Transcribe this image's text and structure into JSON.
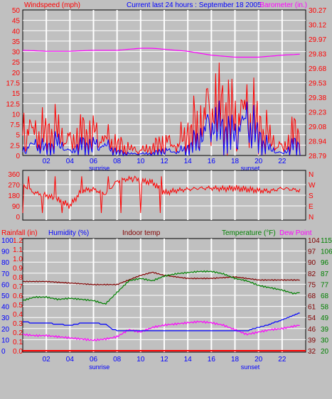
{
  "header": {
    "left_label": "Windspeed (mph)",
    "center_label": "Current last 24 hours : September 18 2005",
    "right_label": "Barometer (in.)"
  },
  "colors": {
    "background": "#c0c0c0",
    "plot": "#c0c0c0",
    "grid": "#ffffff",
    "wind": "#ff0000",
    "gust": "#ff0000",
    "wind_avg": "#0000ff",
    "barometer": "#ff00ff",
    "direction": "#ff0000",
    "rain": "#ff0000",
    "humidity": "#0000ff",
    "indoor": "#800000",
    "temperature": "#008000",
    "dewpoint": "#ff00ff",
    "right_axis": "#800000",
    "right_axis2": "#008000"
  },
  "chart_data": [
    {
      "type": "line",
      "title": "Windspeed (mph) / Barometer (in.)",
      "x_ticks": [
        "02",
        "04",
        "06",
        "08",
        "10",
        "12",
        "14",
        "16",
        "18",
        "20",
        "22"
      ],
      "x_extra_labels": [
        {
          "hour": 6.5,
          "label": "sunrise"
        },
        {
          "hour": 19.3,
          "label": "sunset"
        }
      ],
      "left_axis": {
        "label": "Windspeed (mph)",
        "ticks": [
          0,
          2.5,
          5,
          7.5,
          10,
          12.5,
          15,
          17.5,
          20,
          25,
          30,
          35,
          40,
          45,
          50
        ]
      },
      "right_axis": {
        "label": "Barometer (in.)",
        "ticks": [
          "28.79",
          "28.94",
          "29.08",
          "29.23",
          "29.38",
          "29.53",
          "29.68",
          "29.83",
          "29.97",
          "30.12",
          "30.27"
        ]
      },
      "series": [
        {
          "name": "Windspeed (mph)",
          "x": [
            0,
            1,
            2,
            3,
            4,
            5,
            6,
            7,
            8,
            9,
            10,
            11,
            12,
            13,
            14,
            15,
            16,
            17,
            18,
            19,
            20,
            21,
            22,
            23
          ],
          "values": [
            1.5,
            3.5,
            2,
            4,
            1,
            3,
            3,
            3,
            1,
            0.5,
            0.5,
            0.5,
            1.5,
            1,
            2,
            5,
            10,
            7,
            6,
            11,
            5,
            2,
            0.5,
            3
          ]
        },
        {
          "name": "Gust (mph)",
          "x": [
            0,
            1,
            2,
            3,
            4,
            5,
            6,
            7,
            8,
            9,
            10,
            11,
            12,
            13,
            14,
            15,
            16,
            17,
            18,
            19,
            20,
            21,
            22,
            23
          ],
          "values": [
            8,
            7,
            6,
            7,
            4,
            6,
            6,
            5,
            3,
            2,
            1.5,
            2,
            4,
            3,
            6,
            9,
            15,
            13,
            10,
            14,
            8,
            5,
            2,
            6
          ]
        },
        {
          "name": "Barometer (in.)",
          "x": [
            0,
            2,
            4,
            6,
            8,
            10,
            11,
            12,
            14,
            16,
            18,
            20,
            22,
            23.5
          ],
          "values": [
            29.86,
            29.85,
            29.85,
            29.86,
            29.86,
            29.88,
            29.88,
            29.87,
            29.85,
            29.81,
            29.79,
            29.79,
            29.81,
            29.82
          ]
        }
      ]
    },
    {
      "type": "line",
      "title": "Wind direction",
      "left_axis": {
        "ticks": [
          0,
          90,
          180,
          270,
          360
        ]
      },
      "right_axis": {
        "ticks": [
          "N",
          "E",
          "S",
          "W",
          "N"
        ]
      },
      "series": [
        {
          "name": "Wind direction",
          "x": [
            0,
            1,
            2,
            3,
            4,
            5,
            6,
            7,
            8,
            9,
            10,
            11,
            12,
            13,
            14,
            15,
            16,
            17,
            18,
            19,
            20,
            21,
            22,
            23.5
          ],
          "values": [
            270,
            200,
            180,
            140,
            90,
            220,
            230,
            190,
            300,
            320,
            300,
            290,
            200,
            220,
            230,
            240,
            240,
            235,
            240,
            230,
            220,
            215,
            240,
            220
          ]
        }
      ]
    },
    {
      "type": "line",
      "title": "Rainfall / Humidity / Indoor temp / Temperature / Dew Point",
      "legend": [
        "Rainfall (in)",
        "Humidity (%)",
        "Indoor temp",
        "Temperature (°F)",
        "Dew Point"
      ],
      "axis_rain": {
        "label": "Rainfall (in)",
        "ticks": [
          "0.0",
          "0.1",
          "0.2",
          "0.3",
          "0.4",
          "0.5",
          "0.6",
          "0.7",
          "0.8",
          "0.9",
          "1.0",
          "1.1",
          "1.2"
        ]
      },
      "axis_humidity": {
        "label": "Humidity (%)",
        "ticks": [
          0,
          10,
          20,
          30,
          40,
          50,
          60,
          70,
          80,
          90,
          100
        ]
      },
      "axis_indoor": {
        "label": "Indoor temp",
        "ticks": [
          32,
          39,
          46,
          54,
          61,
          68,
          75,
          82,
          90,
          97,
          104
        ]
      },
      "axis_temp": {
        "label": "Temperature (°F)",
        "ticks": [
          20,
          30,
          39,
          49,
          58,
          68,
          77,
          87,
          96,
          106,
          115
        ]
      },
      "series": [
        {
          "name": "Rainfall (in)",
          "x": [
            0,
            23.5
          ],
          "values": [
            0,
            0
          ]
        },
        {
          "name": "Humidity (%)",
          "x": [
            0,
            1,
            2,
            3,
            4,
            5,
            6,
            7,
            7.5,
            8,
            10,
            12,
            14,
            16,
            18,
            19,
            20,
            21,
            22,
            23,
            23.5
          ],
          "values": [
            26,
            25,
            25,
            24,
            23,
            25,
            25,
            24,
            20,
            18,
            18,
            18,
            18,
            18,
            18,
            18,
            21,
            24,
            28,
            32,
            34
          ]
        },
        {
          "name": "Indoor temp",
          "x": [
            0,
            2,
            4,
            6,
            8,
            9,
            10,
            11,
            12,
            14,
            16,
            18,
            19,
            20,
            22,
            23.5
          ],
          "values": [
            77,
            77,
            76,
            75,
            75,
            78,
            81,
            83,
            81,
            79,
            79,
            80,
            79,
            78,
            78,
            78
          ]
        },
        {
          "name": "Temperature (°F)",
          "x": [
            0,
            1,
            2,
            3,
            4,
            5,
            6,
            7,
            8,
            9,
            10,
            11,
            12,
            13,
            14,
            15,
            16,
            17,
            18,
            19,
            20,
            21,
            22,
            23,
            23.5
          ],
          "values": [
            63,
            66,
            66,
            64,
            65,
            64,
            63,
            60,
            70,
            80,
            82,
            80,
            84,
            86,
            87,
            88,
            88,
            86,
            82,
            80,
            76,
            74,
            72,
            69,
            70
          ]
        },
        {
          "name": "Dew Point",
          "x": [
            0,
            1,
            2,
            3,
            4,
            5,
            6,
            7,
            8,
            9,
            10,
            11,
            12,
            13,
            14,
            15,
            16,
            17,
            18,
            19,
            20,
            21,
            22,
            23,
            23.5
          ],
          "values": [
            34,
            33,
            33,
            32,
            31,
            30,
            29,
            30,
            32,
            38,
            36,
            40,
            42,
            43,
            44,
            45,
            44,
            42,
            38,
            34,
            36,
            38,
            39,
            41,
            42
          ]
        }
      ]
    }
  ]
}
